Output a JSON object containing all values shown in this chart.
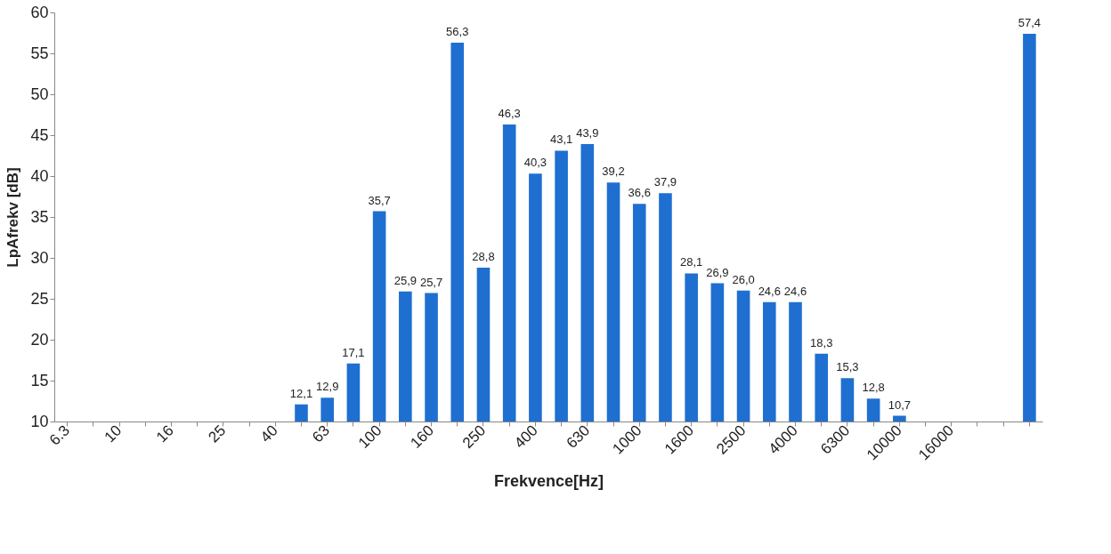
{
  "chart_data": {
    "type": "bar",
    "xlabel": "Frekvence[Hz]",
    "ylabel": "LpAfrekv [dB]",
    "categories": [
      "6.3",
      null,
      "10",
      null,
      "16",
      null,
      "25",
      null,
      "40",
      null,
      "63",
      null,
      "100",
      null,
      "160",
      null,
      "250",
      null,
      "400",
      null,
      "630",
      null,
      "1000",
      null,
      "1600",
      null,
      "2500",
      null,
      "4000",
      null,
      "6300",
      null,
      "10000",
      null,
      "16000",
      null,
      null,
      null
    ],
    "values": [
      null,
      null,
      null,
      null,
      null,
      null,
      null,
      null,
      null,
      12.1,
      12.9,
      17.1,
      35.7,
      25.9,
      25.7,
      56.3,
      28.8,
      46.3,
      40.3,
      43.1,
      43.9,
      39.2,
      36.6,
      37.9,
      28.1,
      26.9,
      26.0,
      24.6,
      24.6,
      18.3,
      15.3,
      12.8,
      10.7,
      null,
      null,
      null,
      null,
      57.4
    ],
    "value_labels": [
      null,
      null,
      null,
      null,
      null,
      null,
      null,
      null,
      null,
      "12,1",
      "12,9",
      "17,1",
      "35,7",
      "25,9",
      "25,7",
      "56,3",
      "28,8",
      "46,3",
      "40,3",
      "43,1",
      "43,9",
      "39,2",
      "36,6",
      "37,9",
      "28,1",
      "26,9",
      "26,0",
      "24,6",
      "24,6",
      "18,3",
      "15,3",
      "12,8",
      "10,7",
      null,
      null,
      null,
      null,
      "57,4"
    ],
    "color": "#1f6fd1",
    "ylim": [
      10,
      60
    ],
    "yticks": [
      10,
      15,
      20,
      25,
      30,
      35,
      40,
      45,
      50,
      55,
      60
    ],
    "grid": false
  }
}
